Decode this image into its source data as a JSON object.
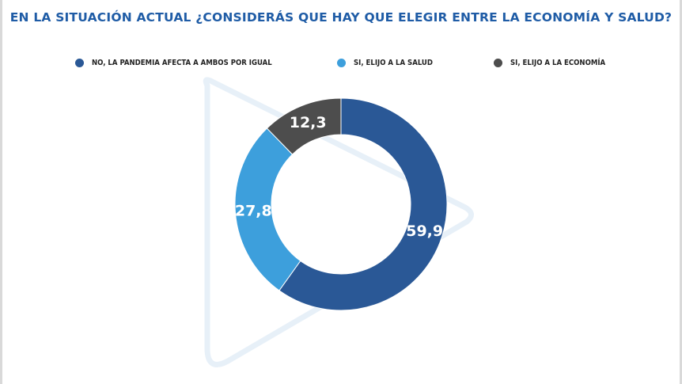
{
  "chart_data": {
    "type": "pie",
    "title": "EN LA SITUACIÓN ACTUAL ¿CONSIDERÁS QUE HAY QUE ELEGIR ENTRE LA ECONOMÍA Y SALUD?",
    "legend_position": "top",
    "categories": [
      "NO, LA PANDEMIA AFECTA A AMBOS POR IGUAL",
      "SI, ELIJO A LA SALUD",
      "SI, ELIJO A LA ECONOMÍA"
    ],
    "values": [
      59.9,
      27.8,
      12.3
    ],
    "value_labels": [
      "59,9",
      "27,8",
      "12,3"
    ],
    "colors": [
      "#2a5896",
      "#3d9fdc",
      "#4d4d4d"
    ],
    "donut": true
  }
}
